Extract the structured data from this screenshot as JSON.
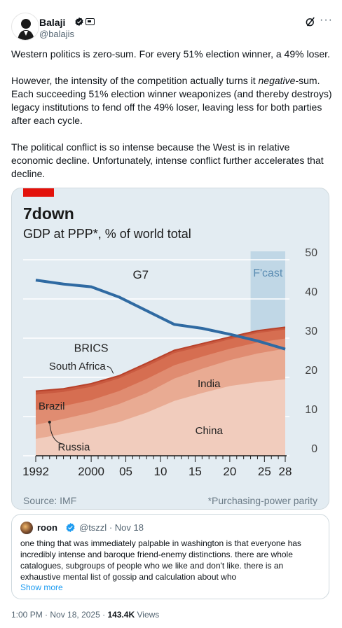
{
  "tweet": {
    "author_name": "Balaji",
    "author_handle": "@balajis",
    "paragraphs": {
      "p1": "Western politics is zero-sum. For every 51% election winner, a 49% loser.",
      "p2_before": "However, the intensity of the competition actually turns it ",
      "p2_em": "negative",
      "p2_after": "-sum. Each succeeding 51% election winner weaponizes (and thereby destroys) legacy institutions to fend off the 49% loser, leaving less for both parties after each cycle.",
      "p3": "The political conflict is so intense because the West is in relative economic decline. Unfortunately, intense conflict further accelerates that decline."
    },
    "icons": [
      "verified-badge-icon",
      "grok-icon",
      "more-icon"
    ],
    "footer": {
      "time": "1:00 PM",
      "date": "Nov 18, 2025",
      "views": "143.4K",
      "views_label": "Views"
    }
  },
  "quote": {
    "name": "roon",
    "handle": "@tszzl",
    "date": "Nov 18",
    "text": "one thing that was immediately palpable in washington is that everyone has incredibly intense and baroque friend-enemy distinctions. there are whole catalogues, subgroups of people who we like and don't like. there is an exhaustive mental list of gossip and calculation about who",
    "show_more": "Show more"
  },
  "chart_data": {
    "type": "area",
    "title": "7down",
    "subtitle": "GDP at PPP*, % of world total",
    "source": "Source: IMF",
    "footnote": "*Purchasing-power parity",
    "forecast_label": "F'cast",
    "forecast_start": 2023,
    "x_range": [
      1992,
      2028
    ],
    "y_range": [
      0,
      50
    ],
    "y_ticks": [
      0,
      10,
      20,
      30,
      40,
      50
    ],
    "x_tick_labels": [
      {
        "x": 1992,
        "label": "1992"
      },
      {
        "x": 2000,
        "label": "2000"
      },
      {
        "x": 2005,
        "label": "05"
      },
      {
        "x": 2010,
        "label": "10"
      },
      {
        "x": 2015,
        "label": "15"
      },
      {
        "x": 2020,
        "label": "20"
      },
      {
        "x": 2025,
        "label": "25"
      },
      {
        "x": 2028,
        "label": "28"
      }
    ],
    "years": [
      1992,
      1996,
      2000,
      2004,
      2008,
      2012,
      2016,
      2020,
      2024,
      2028
    ],
    "stacked_series": [
      {
        "name": "China",
        "values": [
          4.3,
          5.6,
          7.0,
          8.6,
          11.0,
          14.0,
          16.0,
          17.8,
          18.8,
          19.5
        ],
        "color": "#f1ccbd"
      },
      {
        "name": "India",
        "values": [
          3.6,
          3.8,
          4.0,
          4.6,
          5.0,
          5.7,
          6.2,
          6.6,
          7.3,
          7.8
        ],
        "color": "#e9ab93"
      },
      {
        "name": "Russia",
        "values": [
          3.8,
          3.3,
          3.2,
          3.3,
          3.6,
          3.4,
          3.1,
          2.9,
          2.8,
          2.6
        ],
        "color": "#e08c71"
      },
      {
        "name": "Brazil",
        "values": [
          3.9,
          3.6,
          3.4,
          3.2,
          3.2,
          3.1,
          2.6,
          2.4,
          2.4,
          2.3
        ],
        "color": "#d66e51"
      },
      {
        "name": "South Africa",
        "values": [
          0.9,
          0.8,
          0.8,
          0.7,
          0.8,
          0.7,
          0.7,
          0.6,
          0.6,
          0.6
        ],
        "color": "#c95a40"
      }
    ],
    "brics_total_name": "BRICS",
    "line_series": {
      "name": "G7",
      "values": [
        44.8,
        43.8,
        43.1,
        40.5,
        37.0,
        33.5,
        32.5,
        31.0,
        29.3,
        27.2
      ],
      "color": "#2f6aa2"
    },
    "grid": true
  }
}
